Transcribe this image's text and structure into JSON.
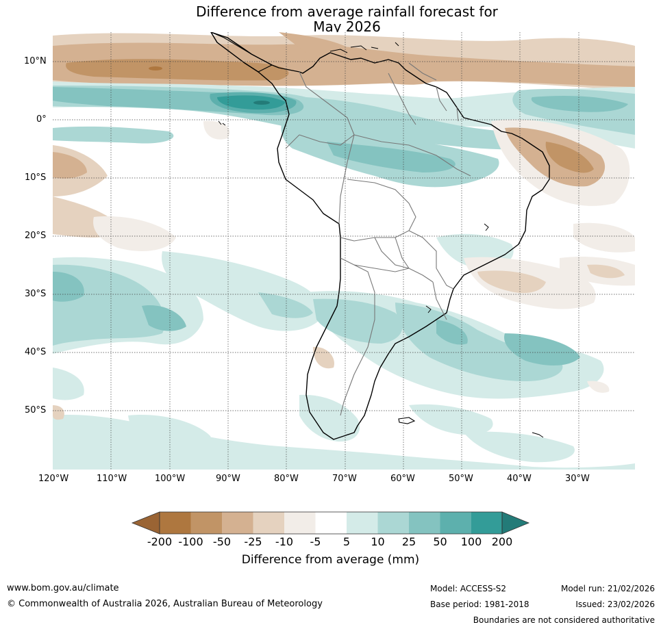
{
  "title_line1": "Difference from average rainfall forecast for",
  "title_line2": "May 2026",
  "lat_labels": [
    "10°N",
    "0°",
    "10°S",
    "20°S",
    "30°S",
    "40°S",
    "50°S"
  ],
  "lon_labels": [
    "120°W",
    "110°W",
    "100°W",
    "90°W",
    "80°W",
    "70°W",
    "60°W",
    "50°W",
    "40°W",
    "30°W"
  ],
  "colorbar": {
    "labels": [
      "-200",
      "-100",
      "-50",
      "-25",
      "-10",
      "-5",
      "5",
      "10",
      "25",
      "50",
      "100",
      "200"
    ],
    "colors": [
      "#9a6434",
      "#ae773f",
      "#c19466",
      "#d4b191",
      "#e5d2bf",
      "#f2ede8",
      "#ffffff",
      "#d4ebe8",
      "#abd7d4",
      "#84c3c0",
      "#5db0ad",
      "#339c98",
      "#237b78"
    ],
    "title": "Difference from average (mm)"
  },
  "footer": {
    "url": "www.bom.gov.au/climate",
    "copyright": "© Commonwealth of Australia 2026, Australian Bureau of Meteorology",
    "model": "Model: ACCESS-S2",
    "base_period": "Base period: 1981-2018",
    "model_run": "Model run: 21/02/2026",
    "issued": "Issued: 23/02/2026",
    "disclaimer": "Boundaries are not considered authoritative"
  }
}
